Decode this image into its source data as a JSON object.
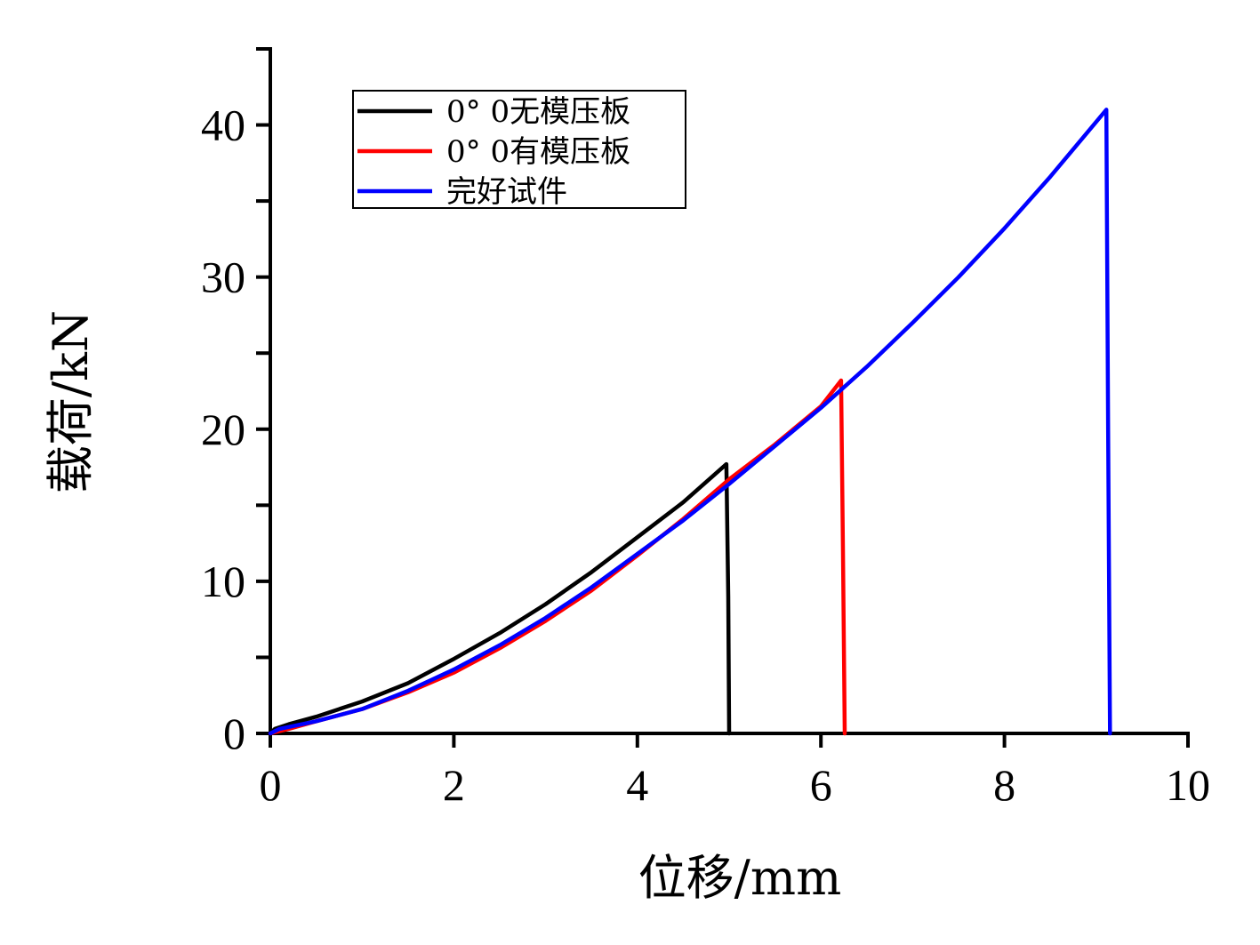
{
  "chart_data": {
    "type": "line",
    "xlabel": "位移/mm",
    "ylabel": "载荷/kN",
    "xlim": [
      0,
      10
    ],
    "ylim": [
      0,
      45
    ],
    "x_ticks": [
      0,
      2,
      4,
      6,
      8,
      10
    ],
    "y_ticks": [
      0,
      10,
      20,
      30,
      40
    ],
    "y_minor_ticks": [
      5,
      15,
      25,
      35,
      45
    ],
    "grid": false,
    "legend_position": "top-left",
    "series": [
      {
        "name": "0° 0无模压板",
        "color": "#000000",
        "points": [
          [
            0.0,
            0.0
          ],
          [
            0.05,
            0.3
          ],
          [
            0.2,
            0.6
          ],
          [
            0.5,
            1.1
          ],
          [
            1.0,
            2.1
          ],
          [
            1.5,
            3.3
          ],
          [
            2.0,
            4.9
          ],
          [
            2.5,
            6.6
          ],
          [
            3.0,
            8.5
          ],
          [
            3.5,
            10.6
          ],
          [
            4.0,
            12.9
          ],
          [
            4.5,
            15.2
          ],
          [
            4.97,
            17.7
          ],
          [
            4.99,
            9.0
          ],
          [
            5.0,
            0.0
          ]
        ]
      },
      {
        "name": "0° 0有模压板",
        "color": "#ff0000",
        "points": [
          [
            0.0,
            0.0
          ],
          [
            0.2,
            0.3
          ],
          [
            0.5,
            0.8
          ],
          [
            1.0,
            1.6
          ],
          [
            1.5,
            2.7
          ],
          [
            2.0,
            4.0
          ],
          [
            2.5,
            5.6
          ],
          [
            3.0,
            7.4
          ],
          [
            3.5,
            9.4
          ],
          [
            4.0,
            11.7
          ],
          [
            4.5,
            14.1
          ],
          [
            5.0,
            16.7
          ],
          [
            5.5,
            19.0
          ],
          [
            6.0,
            21.5
          ],
          [
            6.22,
            23.2
          ],
          [
            6.24,
            12.0
          ],
          [
            6.26,
            0.0
          ]
        ]
      },
      {
        "name": "完好试件",
        "color": "#0000ff",
        "points": [
          [
            0.0,
            0.0
          ],
          [
            0.1,
            0.3
          ],
          [
            0.5,
            0.8
          ],
          [
            1.0,
            1.6
          ],
          [
            1.5,
            2.8
          ],
          [
            2.0,
            4.2
          ],
          [
            2.5,
            5.8
          ],
          [
            3.0,
            7.6
          ],
          [
            3.5,
            9.6
          ],
          [
            4.0,
            11.8
          ],
          [
            4.5,
            14.0
          ],
          [
            5.0,
            16.4
          ],
          [
            5.5,
            18.9
          ],
          [
            6.0,
            21.4
          ],
          [
            6.5,
            24.1
          ],
          [
            7.0,
            27.0
          ],
          [
            7.5,
            30.0
          ],
          [
            8.0,
            33.2
          ],
          [
            8.5,
            36.6
          ],
          [
            9.0,
            40.2
          ],
          [
            9.11,
            41.0
          ],
          [
            9.13,
            20.0
          ],
          [
            9.15,
            0.0
          ]
        ]
      }
    ]
  }
}
